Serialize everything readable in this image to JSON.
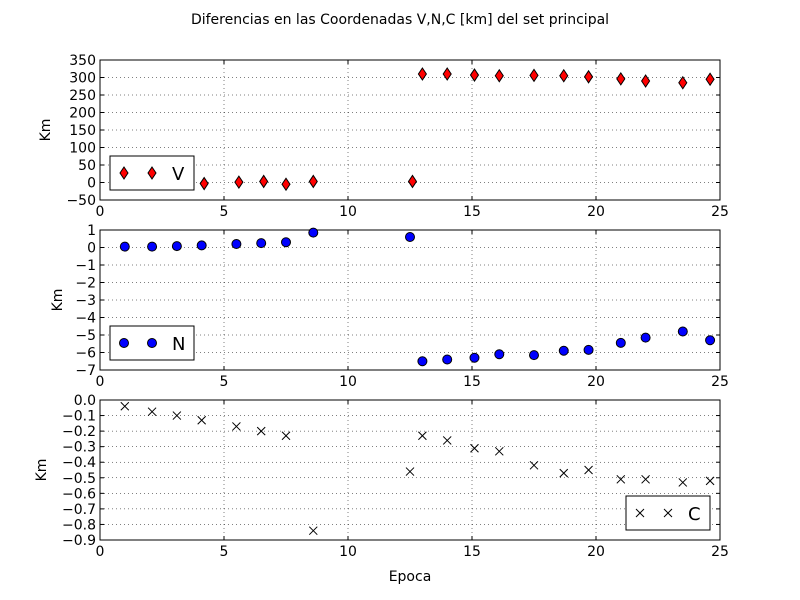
{
  "chart_data": {
    "title": "Diferencias en las Coordenadas V,N,C [km] del set principal",
    "xlabel": "Epoca",
    "x_ticks": [
      "0",
      "5",
      "10",
      "15",
      "20",
      "25"
    ],
    "xlim": [
      0,
      25
    ],
    "grid": true,
    "subplots": [
      {
        "type": "scatter",
        "ylabel": "Km",
        "ylim": [
          -50,
          350
        ],
        "y_ticks": [
          "350",
          "300",
          "250",
          "200",
          "150",
          "100",
          "50",
          "0",
          "−50"
        ],
        "y_tick_values": [
          350,
          300,
          250,
          200,
          150,
          100,
          50,
          0,
          -50
        ],
        "marker": "diamond",
        "color": "#ff0000",
        "legend": {
          "label": "V",
          "placement": "lower-left"
        },
        "x": [
          4.2,
          5.6,
          6.6,
          7.5,
          8.6,
          12.6,
          13.0,
          14.0,
          15.1,
          16.1,
          17.5,
          18.7,
          19.7,
          21.0,
          22.0,
          23.5,
          24.6
        ],
        "y": [
          -3,
          1,
          3,
          -5,
          3,
          3,
          310,
          310,
          307,
          305,
          306,
          305,
          302,
          296,
          290,
          285,
          295
        ]
      },
      {
        "type": "scatter",
        "ylabel": "Km",
        "ylim": [
          -7,
          1
        ],
        "y_ticks": [
          "1",
          "0",
          "−1",
          "−2",
          "−3",
          "−4",
          "−5",
          "−6",
          "−7"
        ],
        "y_tick_values": [
          1,
          0,
          -1,
          -2,
          -3,
          -4,
          -5,
          -6,
          -7
        ],
        "marker": "circle",
        "color": "#0000ff",
        "legend": {
          "label": "N",
          "placement": "lower-left"
        },
        "x": [
          1.0,
          2.1,
          3.1,
          4.1,
          5.5,
          6.5,
          7.5,
          8.6,
          12.5,
          13.0,
          14.0,
          15.1,
          16.1,
          17.5,
          18.7,
          19.7,
          21.0,
          22.0,
          23.5,
          24.6
        ],
        "y": [
          0.05,
          0.05,
          0.08,
          0.12,
          0.2,
          0.25,
          0.3,
          0.85,
          0.6,
          -6.5,
          -6.4,
          -6.3,
          -6.1,
          -6.15,
          -5.9,
          -5.85,
          -5.45,
          -5.15,
          -4.8,
          -5.3
        ]
      },
      {
        "type": "scatter",
        "ylabel": "Km",
        "ylim": [
          -0.9,
          0.0
        ],
        "y_ticks": [
          "0.0",
          "−0.1",
          "−0.2",
          "−0.3",
          "−0.4",
          "−0.5",
          "−0.6",
          "−0.7",
          "−0.8",
          "−0.9"
        ],
        "y_tick_values": [
          0.0,
          -0.1,
          -0.2,
          -0.3,
          -0.4,
          -0.5,
          -0.6,
          -0.7,
          -0.8,
          -0.9
        ],
        "marker": "x",
        "color": "#000000",
        "legend": {
          "label": "C",
          "placement": "lower-right"
        },
        "x": [
          1.0,
          2.1,
          3.1,
          4.1,
          5.5,
          6.5,
          7.5,
          8.6,
          12.5,
          13.0,
          14.0,
          15.1,
          16.1,
          17.5,
          18.7,
          19.7,
          21.0,
          22.0,
          23.5,
          24.6
        ],
        "y": [
          -0.04,
          -0.075,
          -0.1,
          -0.13,
          -0.17,
          -0.2,
          -0.23,
          -0.84,
          -0.46,
          -0.23,
          -0.26,
          -0.31,
          -0.33,
          -0.42,
          -0.47,
          -0.45,
          -0.51,
          -0.51,
          -0.53,
          -0.52
        ]
      }
    ]
  }
}
